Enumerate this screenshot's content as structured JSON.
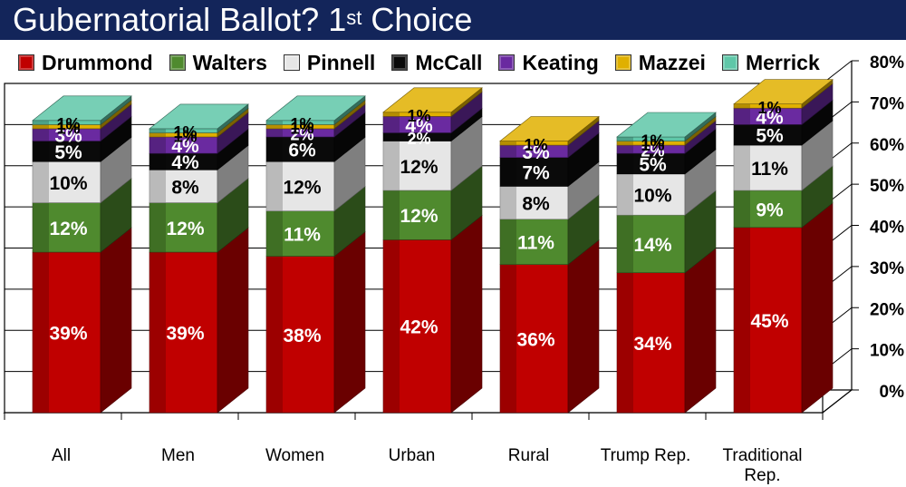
{
  "header": {
    "title_main": "Gubernatorial Ballot? 1",
    "title_sup": "st",
    "title_tail": " Choice"
  },
  "colors": {
    "title_bar": "#13255a",
    "Drummond": "#c00000",
    "Walters": "#4f8a2e",
    "Pinnell": "#e6e6e6",
    "McCall": "#0a0a0a",
    "Keating": "#6a2aa0",
    "Mazzei": "#e0b000",
    "Merrick": "#5fc7a8"
  },
  "chart_data": {
    "type": "bar",
    "stacked": true,
    "three_d": true,
    "title": "Gubernatorial Ballot? 1st Choice",
    "categories": [
      "All",
      "Men",
      "Women",
      "Urban",
      "Rural",
      "Trump Rep.",
      "Traditional Rep."
    ],
    "y_ticks": [
      "0%",
      "10%",
      "20%",
      "30%",
      "40%",
      "50%",
      "60%",
      "70%",
      "80%"
    ],
    "ylim": [
      0,
      80
    ],
    "legend_position": "top",
    "grid": true,
    "series": [
      {
        "name": "Drummond",
        "values": [
          39,
          39,
          38,
          42,
          36,
          34,
          45
        ]
      },
      {
        "name": "Walters",
        "values": [
          12,
          12,
          11,
          12,
          11,
          14,
          9
        ]
      },
      {
        "name": "Pinnell",
        "values": [
          10,
          8,
          12,
          12,
          8,
          10,
          11
        ]
      },
      {
        "name": "McCall",
        "values": [
          5,
          4,
          6,
          2,
          7,
          5,
          5
        ]
      },
      {
        "name": "Keating",
        "values": [
          3,
          4,
          2,
          4,
          3,
          2,
          4
        ]
      },
      {
        "name": "Mazzei",
        "values": [
          1,
          1,
          1,
          1,
          1,
          1,
          1
        ]
      },
      {
        "name": "Merrick",
        "values": [
          1,
          1,
          1,
          0,
          0,
          1,
          0
        ]
      }
    ]
  }
}
